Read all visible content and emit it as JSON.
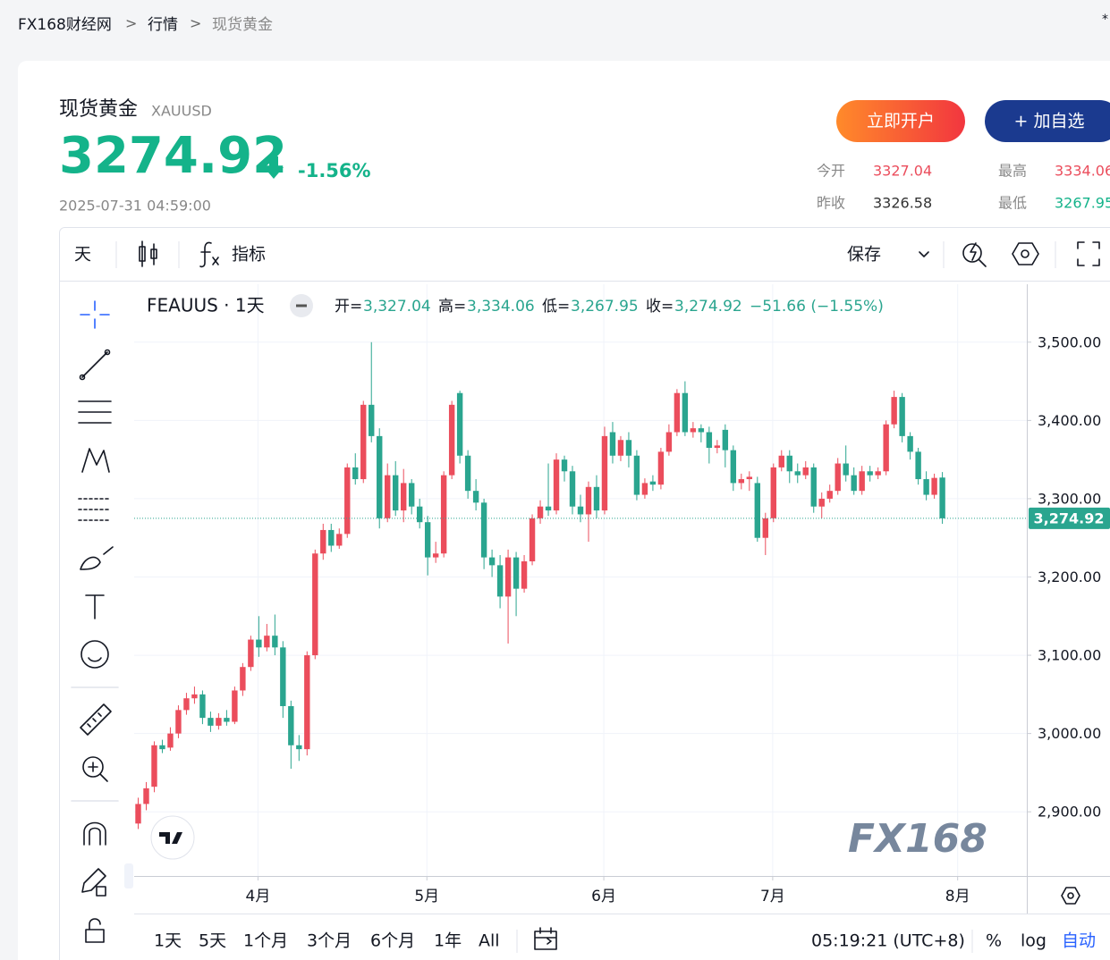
{
  "breadcrumb": [
    "FX168财经网",
    ">",
    "行情",
    ">",
    "现货黄金"
  ],
  "corner_mark": "*",
  "quote": {
    "name": "现货黄金",
    "symbol": "XAUUSD",
    "price": "3274.92",
    "change": "-1.56%",
    "time": "2025-07-31 04:59:00",
    "buttons": [
      "立即开户",
      "+ 加自选"
    ],
    "stats": [
      {
        "label": "今开",
        "value": "3327.04"
      },
      {
        "label": "最高",
        "value": "3334.06"
      },
      {
        "label": "昨收",
        "value": "3326.58"
      },
      {
        "label": "最低",
        "value": "3267.95"
      }
    ]
  },
  "toolbar": {
    "interval": "天",
    "indicators": "指标",
    "save": "保存"
  },
  "chart_data": {
    "type": "candlestick",
    "title": "FEAUUS · 1天",
    "legend": [
      {
        "label": "开=",
        "value": "3,327.04"
      },
      {
        "label": "高=",
        "value": "3,334.06"
      },
      {
        "label": "低=",
        "value": "3,267.95"
      },
      {
        "label": "收=",
        "value": "3,274.92"
      }
    ],
    "change": "−51.66 (−1.55%)",
    "watermark": "FX168",
    "up_color": "#eb4d5c",
    "down_color": "#2aa58f",
    "open": [
      2885,
      2910,
      2932,
      2985,
      2982,
      3000,
      3030,
      3045,
      3050,
      3020,
      3010,
      3020,
      3015,
      3055,
      3085,
      3120,
      3110,
      3125,
      3110,
      3035,
      2985,
      2980,
      3100,
      3230,
      3260,
      3240,
      3255,
      3340,
      3325,
      3420,
      3380,
      3275,
      3330,
      3285,
      3320,
      3290,
      3270,
      3225,
      3230,
      3330,
      3435,
      3355,
      3310,
      3295,
      3225,
      3215,
      3175,
      3225,
      3185,
      3220,
      3275,
      3290,
      3285,
      3350,
      3335,
      3290,
      3280,
      3315,
      3285,
      3385,
      3355,
      3375,
      3355,
      3305,
      3322,
      3318,
      3360,
      3385,
      3435,
      3385,
      3390,
      3385,
      3365,
      3388,
      3362,
      3320,
      3325,
      3320,
      3250,
      3275,
      3340,
      3355,
      3335,
      3330,
      3340,
      3290,
      3300,
      3310,
      3345,
      3330,
      3310,
      3335,
      3330,
      3335,
      3395,
      3430,
      3380,
      3360,
      3325,
      3305,
      3327.04
    ],
    "high": [
      2918,
      2938,
      2990,
      2992,
      3008,
      3036,
      3052,
      3060,
      3055,
      3028,
      3026,
      3030,
      3060,
      3090,
      3125,
      3150,
      3140,
      3152,
      3118,
      3042,
      2998,
      3105,
      3235,
      3268,
      3268,
      3262,
      3345,
      3358,
      3425,
      3500,
      3390,
      3345,
      3348,
      3338,
      3325,
      3300,
      3278,
      3245,
      3335,
      3425,
      3438,
      3362,
      3325,
      3300,
      3235,
      3228,
      3235,
      3232,
      3228,
      3280,
      3298,
      3345,
      3358,
      3355,
      3342,
      3305,
      3322,
      3330,
      3392,
      3398,
      3380,
      3385,
      3362,
      3326,
      3330,
      3365,
      3395,
      3440,
      3450,
      3398,
      3395,
      3392,
      3375,
      3395,
      3368,
      3332,
      3335,
      3328,
      3282,
      3345,
      3362,
      3362,
      3345,
      3348,
      3345,
      3308,
      3318,
      3352,
      3368,
      3340,
      3342,
      3342,
      3340,
      3400,
      3438,
      3435,
      3385,
      3365,
      3335,
      3332,
      3334.06
    ],
    "low": [
      2878,
      2902,
      2925,
      2975,
      2978,
      2994,
      3024,
      3038,
      3012,
      3002,
      3005,
      3010,
      3012,
      3048,
      3080,
      3098,
      3105,
      3100,
      3020,
      2955,
      2965,
      2972,
      3095,
      3222,
      3232,
      3236,
      3250,
      3318,
      3320,
      3372,
      3262,
      3270,
      3278,
      3270,
      3280,
      3262,
      3202,
      3218,
      3225,
      3325,
      3345,
      3300,
      3285,
      3210,
      3200,
      3160,
      3115,
      3150,
      3180,
      3215,
      3268,
      3278,
      3280,
      3322,
      3280,
      3270,
      3245,
      3275,
      3280,
      3345,
      3348,
      3340,
      3298,
      3300,
      3310,
      3312,
      3355,
      3380,
      3380,
      3378,
      3372,
      3345,
      3358,
      3340,
      3310,
      3312,
      3310,
      3245,
      3228,
      3270,
      3335,
      3320,
      3320,
      3325,
      3282,
      3275,
      3295,
      3305,
      3322,
      3305,
      3305,
      3322,
      3325,
      3330,
      3390,
      3372,
      3350,
      3318,
      3298,
      3300,
      3267.95
    ],
    "close": [
      2910,
      2930,
      2985,
      2980,
      3000,
      3030,
      3045,
      3050,
      3020,
      3010,
      3020,
      3015,
      3055,
      3085,
      3120,
      3110,
      3125,
      3110,
      3035,
      2985,
      2980,
      3100,
      3230,
      3260,
      3240,
      3255,
      3340,
      3325,
      3420,
      3380,
      3275,
      3330,
      3285,
      3320,
      3290,
      3270,
      3225,
      3230,
      3330,
      3420,
      3355,
      3310,
      3295,
      3225,
      3215,
      3175,
      3225,
      3185,
      3220,
      3275,
      3290,
      3285,
      3350,
      3335,
      3290,
      3280,
      3315,
      3285,
      3380,
      3355,
      3375,
      3355,
      3305,
      3320,
      3318,
      3360,
      3385,
      3435,
      3385,
      3390,
      3385,
      3365,
      3368,
      3362,
      3320,
      3325,
      3328,
      3250,
      3275,
      3340,
      3355,
      3335,
      3330,
      3340,
      3290,
      3300,
      3310,
      3345,
      3330,
      3310,
      3335,
      3330,
      3335,
      3395,
      3430,
      3380,
      3360,
      3325,
      3305,
      3326.58,
      3274.92
    ],
    "xlim": [
      -0.5,
      110.5
    ],
    "xticks": [
      {
        "value": 14.9,
        "label": "4月"
      },
      {
        "value": 35.9,
        "label": "5月"
      },
      {
        "value": 57.9,
        "label": "6月"
      },
      {
        "value": 78.9,
        "label": "7月"
      },
      {
        "value": 101.9,
        "label": "8月"
      }
    ],
    "ylim": [
      2818,
      3574
    ],
    "yticks": [
      {
        "value": 2900,
        "label": "2,900.00"
      },
      {
        "value": 3000,
        "label": "3,000.00"
      },
      {
        "value": 3100,
        "label": "3,100.00"
      },
      {
        "value": 3200,
        "label": "3,200.00"
      },
      {
        "value": 3300,
        "label": "3,300.00"
      },
      {
        "value": 3400,
        "label": "3,400.00"
      },
      {
        "value": 3500,
        "label": "3,500.00"
      }
    ],
    "grid": true,
    "last_price": {
      "value": 3274.92,
      "label": "3,274.92"
    }
  },
  "footer": {
    "ranges": [
      "1天",
      "5天",
      "1个月",
      "3个月",
      "6个月",
      "1年",
      "All"
    ],
    "clock": "05:19:21 (UTC+8)",
    "options": [
      "%",
      "log",
      "自动"
    ]
  }
}
